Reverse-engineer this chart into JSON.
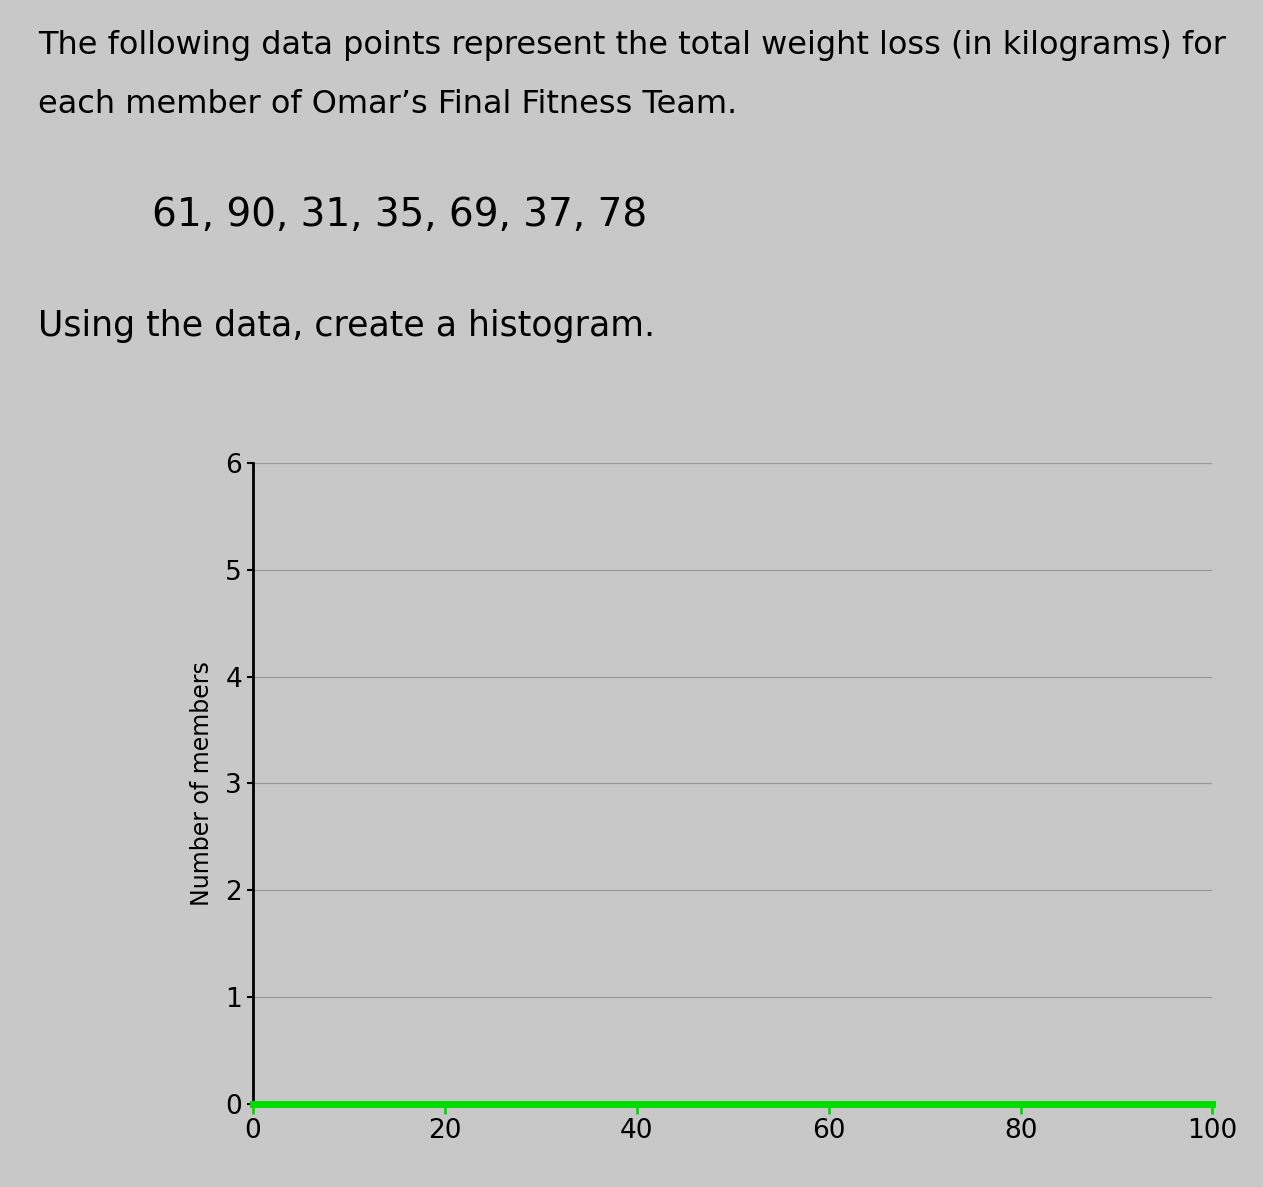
{
  "data": [
    61,
    90,
    31,
    35,
    69,
    37,
    78
  ],
  "title_line1": "The following data points represent the total weight loss (in kilograms) for",
  "title_line2": "each member of Omar’s Final Fitness Team.",
  "data_label": "61, 90, 31, 35, 69, 37, 78",
  "instruction": "Using the data, create a histogram.",
  "ylabel": "Number of members",
  "xlim": [
    0,
    100
  ],
  "ylim": [
    0,
    6
  ],
  "xticks": [
    0,
    20,
    40,
    60,
    80,
    100
  ],
  "yticks": [
    0,
    1,
    2,
    3,
    4,
    5,
    6
  ],
  "background_color": "#c8c8c8",
  "plot_bg_color": "#c8c8c8",
  "grid_color": "#999999",
  "xaxis_line_color": "#00dd00",
  "title_fontsize": 23,
  "data_fontsize": 28,
  "instruction_fontsize": 25,
  "ylabel_fontsize": 17,
  "tick_fontsize": 19
}
